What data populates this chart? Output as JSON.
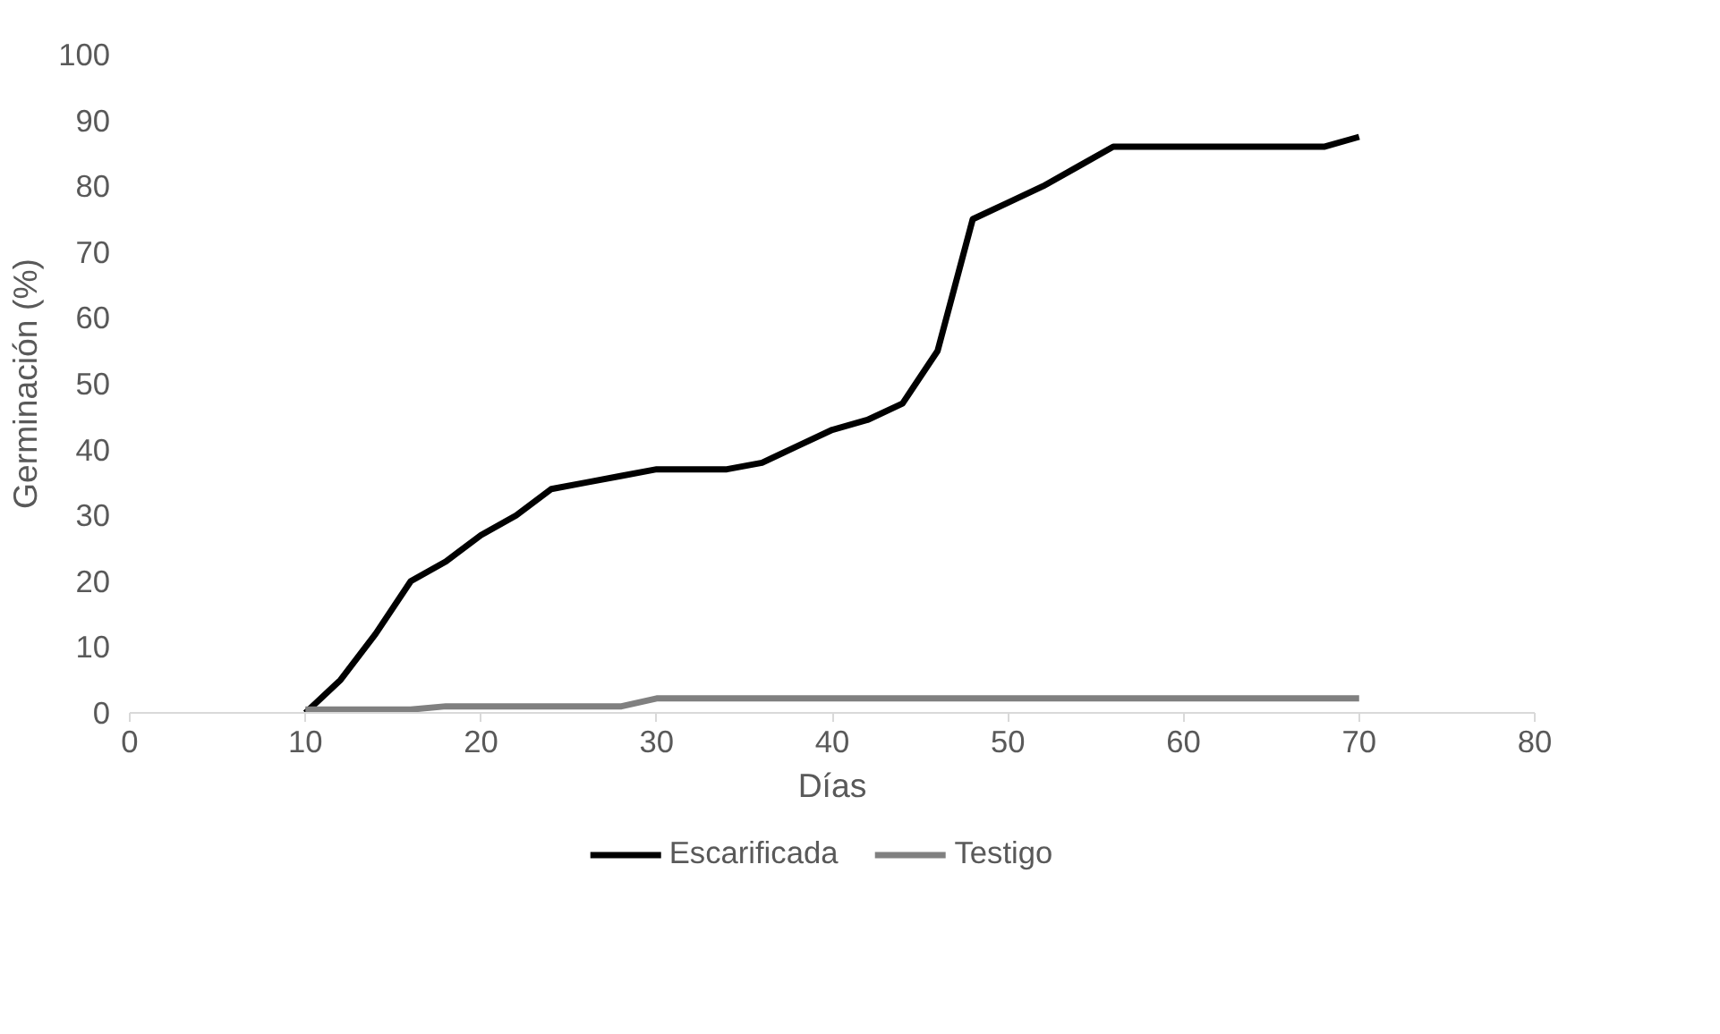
{
  "chart_data": {
    "type": "line",
    "xlabel": "Días",
    "ylabel": "Germinación (%)",
    "x": [
      10,
      12,
      14,
      16,
      18,
      20,
      22,
      24,
      26,
      28,
      30,
      32,
      34,
      36,
      38,
      40,
      42,
      44,
      46,
      48,
      50,
      52,
      54,
      56,
      58,
      60,
      62,
      64,
      66,
      68,
      70
    ],
    "xlim": [
      0,
      80
    ],
    "xticks": [
      0,
      10,
      20,
      30,
      40,
      50,
      60,
      70,
      80
    ],
    "ylim": [
      0,
      100
    ],
    "yticks": [
      0,
      10,
      20,
      30,
      40,
      50,
      60,
      70,
      80,
      90,
      100
    ],
    "grid": false,
    "legend": "bottom",
    "marker": "none",
    "line_style": "solid",
    "series": [
      {
        "name": "Escarificada",
        "color": "#000000",
        "values": [
          0,
          5,
          12,
          20,
          23,
          27,
          30,
          34,
          35,
          36,
          37,
          37,
          37,
          38,
          40.5,
          43,
          44.5,
          47,
          55,
          75,
          77.5,
          80,
          83,
          86,
          86,
          86,
          86,
          86,
          86,
          86,
          87.5
        ]
      },
      {
        "name": "Testigo",
        "color": "#808080",
        "values": [
          0.5,
          0.5,
          0.5,
          0.5,
          1,
          1,
          1,
          1,
          1,
          1,
          2.2,
          2.2,
          2.2,
          2.2,
          2.2,
          2.2,
          2.2,
          2.2,
          2.2,
          2.2,
          2.2,
          2.2,
          2.2,
          2.2,
          2.2,
          2.2,
          2.2,
          2.2,
          2.2,
          2.2,
          2.2
        ]
      }
    ]
  }
}
